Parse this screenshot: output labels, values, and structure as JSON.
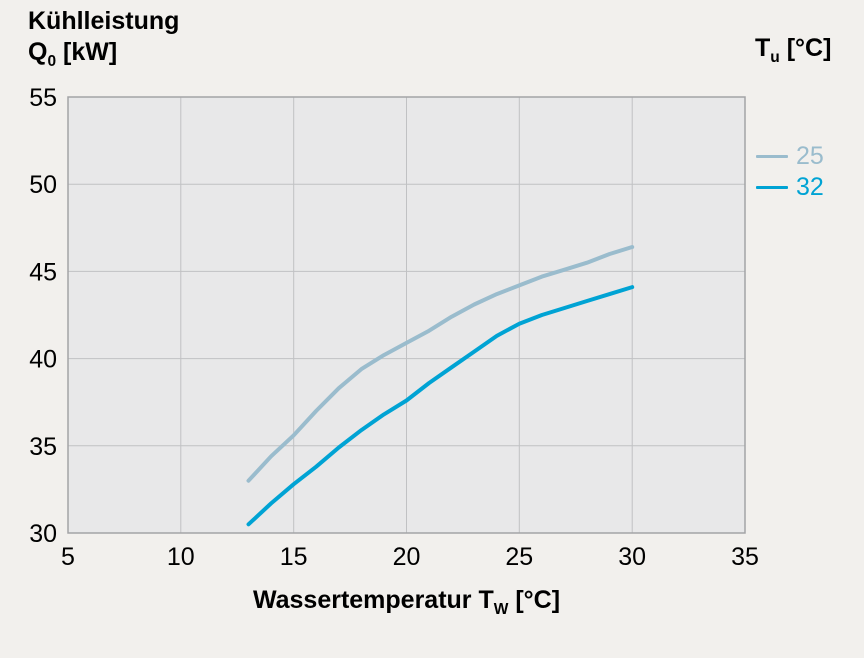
{
  "title": {
    "line1": "Kühlleistung",
    "line2_main": "Q",
    "line2_sub": "0",
    "line2_unit": " [kW]"
  },
  "legend": {
    "title_main": "T",
    "title_sub": "u",
    "title_unit": " [°C]"
  },
  "xlabel": {
    "main": "Wassertemperatur T",
    "sub": "W",
    "unit": " [°C]"
  },
  "colors": {
    "page_bg": "#f2f0ed",
    "plot_bg": "#e8e8e9",
    "grid": "#c0c1c3",
    "frame": "#a3a4a6",
    "text": "#000000",
    "series_25": "#9abccd",
    "series_32": "#00a3d4"
  },
  "chart_data": {
    "type": "line",
    "title": "Kühlleistung Q0 [kW]",
    "xlabel": "Wassertemperatur TW [°C]",
    "ylabel": "Kühlleistung Q0 [kW]",
    "legend_title": "Tu [°C]",
    "legend_position": "top-right-outside",
    "grid": true,
    "xlim": [
      5,
      35
    ],
    "ylim": [
      30,
      55
    ],
    "xticks": [
      5,
      10,
      15,
      20,
      25,
      30,
      35
    ],
    "yticks": [
      30,
      35,
      40,
      45,
      50,
      55
    ],
    "series": [
      {
        "name": "25",
        "color": "#9abccd",
        "points": [
          [
            13,
            33.0
          ],
          [
            14,
            34.4
          ],
          [
            15,
            35.6
          ],
          [
            16,
            37.0
          ],
          [
            17,
            38.3
          ],
          [
            18,
            39.4
          ],
          [
            19,
            40.2
          ],
          [
            20,
            40.9
          ],
          [
            21,
            41.6
          ],
          [
            22,
            42.4
          ],
          [
            23,
            43.1
          ],
          [
            24,
            43.7
          ],
          [
            25,
            44.2
          ],
          [
            26,
            44.7
          ],
          [
            27,
            45.1
          ],
          [
            28,
            45.5
          ],
          [
            29,
            46.0
          ],
          [
            30,
            46.4
          ]
        ]
      },
      {
        "name": "32",
        "color": "#00a3d4",
        "points": [
          [
            13,
            30.5
          ],
          [
            14,
            31.7
          ],
          [
            15,
            32.8
          ],
          [
            16,
            33.8
          ],
          [
            17,
            34.9
          ],
          [
            18,
            35.9
          ],
          [
            19,
            36.8
          ],
          [
            20,
            37.6
          ],
          [
            21,
            38.6
          ],
          [
            22,
            39.5
          ],
          [
            23,
            40.4
          ],
          [
            24,
            41.3
          ],
          [
            25,
            42.0
          ],
          [
            26,
            42.5
          ],
          [
            27,
            42.9
          ],
          [
            28,
            43.3
          ],
          [
            29,
            43.7
          ],
          [
            30,
            44.1
          ]
        ]
      }
    ]
  }
}
